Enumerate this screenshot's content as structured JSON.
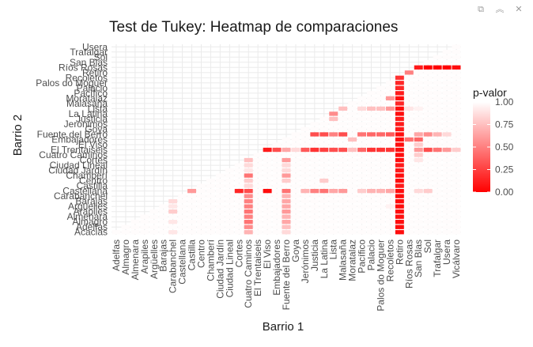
{
  "toolbar": {
    "icons": [
      "copy-icon",
      "collapse-icon",
      "close-icon"
    ],
    "copy_glyph": "⧉",
    "collapse_glyph": "︽",
    "close_glyph": "✕"
  },
  "chart_data": {
    "type": "heatmap",
    "title": "Test de Tukey: Heatmap de comparaciones",
    "xlabel": "Barrio 1",
    "ylabel": "Barrio 2",
    "x_categories": [
      "Adelfas",
      "Almagro",
      "Almenara",
      "Arapiles",
      "Argüelles",
      "Barajas",
      "Carabanchel",
      "Castellana",
      "Castilla",
      "Centro",
      "Chamberí",
      "Ciudad Jardín",
      "Ciudad Lineal",
      "Cortes",
      "Cuatro Caminos",
      "El Trentaiseis",
      "El Viso",
      "Embajadores",
      "Fuente del Berro",
      "Goya",
      "Jerónimos",
      "Justicia",
      "La Latina",
      "Lista",
      "Malasaña",
      "Moratalaz",
      "Pacífico",
      "Palacio",
      "Palos do Moguer",
      "Recoletos",
      "Retiro",
      "Ríos Rosas",
      "San Blas",
      "Sol",
      "Trafalgar",
      "Usera",
      "Vicálvaro"
    ],
    "y_categories": [
      "Acacias",
      "Adelfas",
      "Almagro",
      "Almenara",
      "Arapiles",
      "Argüelles",
      "Barajas",
      "Carabanchel",
      "Castellana",
      "Castilla",
      "Centro",
      "Chamberí",
      "Ciudad Jardín",
      "Ciudad Lineal",
      "Cortes",
      "Cuatro Caminos",
      "El Trentaiseis",
      "El Viso",
      "Embajadores",
      "Fuente del Berro",
      "Goya",
      "Jerónimos",
      "Justicia",
      "La Latina",
      "Lista",
      "Malasaña",
      "Moratalaz",
      "Pacífico",
      "Palacio",
      "Palos do Moguer",
      "Recoletos",
      "Retiro",
      "Ríos Rosas",
      "San Blas",
      "Sol",
      "Trafalgar",
      "Usera"
    ],
    "legend": {
      "title": "p-valor",
      "ticks": [
        "1.00",
        "0.75",
        "0.50",
        "0.25",
        "0.00"
      ],
      "tick_values": [
        1.0,
        0.75,
        0.5,
        0.25,
        0.0
      ],
      "range": [
        0,
        1
      ],
      "low_color": "#ff0000",
      "high_color": "#ffffff",
      "position": "right"
    },
    "default_value": 0.99,
    "cells": [
      [
        "Ríos Rosas",
        "Ríos Rosas",
        0.55
      ],
      [
        "San Blas",
        "Ríos Rosas",
        0.1
      ],
      [
        "Sol",
        "Ríos Rosas",
        0.0
      ],
      [
        "Trafalgar",
        "Ríos Rosas",
        0.0
      ],
      [
        "Usera",
        "Ríos Rosas",
        0.0
      ],
      [
        "Vicálvaro",
        "Ríos Rosas",
        0.05
      ],
      [
        "Retiro",
        "Retiro",
        0.1
      ],
      [
        "Ríos Rosas",
        "Retiro",
        0.5
      ],
      [
        "Retiro",
        "Recoletos",
        0.2
      ],
      [
        "Retiro",
        "Palos do Moguer",
        0.15
      ],
      [
        "Retiro",
        "Palacio",
        0.15
      ],
      [
        "Retiro",
        "Pacífico",
        0.1
      ],
      [
        "Recoletos",
        "Moratalaz",
        0.6
      ],
      [
        "Retiro",
        "Moratalaz",
        0.05
      ],
      [
        "Retiro",
        "Malasaña",
        0.15
      ],
      [
        "Malasaña",
        "Lista",
        0.75
      ],
      [
        "Pacífico",
        "Lista",
        0.85
      ],
      [
        "Palacio",
        "Lista",
        0.75
      ],
      [
        "Palos do Moguer",
        "Lista",
        0.75
      ],
      [
        "Recoletos",
        "Lista",
        0.6
      ],
      [
        "Retiro",
        "Lista",
        0.05
      ],
      [
        "Ríos Rosas",
        "Lista",
        0.9
      ],
      [
        "San Blas",
        "Lista",
        0.95
      ],
      [
        "Lista",
        "La Latina",
        0.55
      ],
      [
        "Retiro",
        "La Latina",
        0.05
      ],
      [
        "Lista",
        "Justicia",
        0.75
      ],
      [
        "Retiro",
        "Justicia",
        0.1
      ],
      [
        "Retiro",
        "Jerónimos",
        0.1
      ],
      [
        "Retiro",
        "Goya",
        0.1
      ],
      [
        "Justicia",
        "Fuente del Berro",
        0.3
      ],
      [
        "La Latina",
        "Fuente del Berro",
        0.3
      ],
      [
        "Lista",
        "Fuente del Berro",
        0.5
      ],
      [
        "Malasaña",
        "Fuente del Berro",
        0.3
      ],
      [
        "Pacífico",
        "Fuente del Berro",
        0.45
      ],
      [
        "Palacio",
        "Fuente del Berro",
        0.4
      ],
      [
        "Palos do Moguer",
        "Fuente del Berro",
        0.4
      ],
      [
        "Recoletos",
        "Fuente del Berro",
        0.35
      ],
      [
        "Retiro",
        "Fuente del Berro",
        0.05
      ],
      [
        "San Blas",
        "Fuente del Berro",
        0.65
      ],
      [
        "Sol",
        "Fuente del Berro",
        0.55
      ],
      [
        "Trafalgar",
        "Fuente del Berro",
        0.7
      ],
      [
        "Usera",
        "Fuente del Berro",
        0.85
      ],
      [
        "Moratalaz",
        "Embajadores",
        0.75
      ],
      [
        "Retiro",
        "Embajadores",
        0.05
      ],
      [
        "Ríos Rosas",
        "Embajadores",
        0.45
      ],
      [
        "San Blas",
        "Embajadores",
        0.4
      ],
      [
        "Retiro",
        "El Viso",
        0.05
      ],
      [
        "San Blas",
        "El Viso",
        0.8
      ],
      [
        "El Trentaiseis",
        "El Trentaiseis",
        0.45
      ],
      [
        "El Viso",
        "El Trentaiseis",
        0.1
      ],
      [
        "Embajadores",
        "El Trentaiseis",
        0.3
      ],
      [
        "Fuente del Berro",
        "El Trentaiseis",
        0.65
      ],
      [
        "Goya",
        "El Trentaiseis",
        0.85
      ],
      [
        "Jerónimos",
        "El Trentaiseis",
        0.35
      ],
      [
        "Justicia",
        "El Trentaiseis",
        0.2
      ],
      [
        "La Latina",
        "El Trentaiseis",
        0.25
      ],
      [
        "Lista",
        "El Trentaiseis",
        0.3
      ],
      [
        "Malasaña",
        "El Trentaiseis",
        0.3
      ],
      [
        "Moratalaz",
        "El Trentaiseis",
        0.75
      ],
      [
        "Pacífico",
        "El Trentaiseis",
        0.4
      ],
      [
        "Palacio",
        "El Trentaiseis",
        0.2
      ],
      [
        "Palos do Moguer",
        "El Trentaiseis",
        0.2
      ],
      [
        "Recoletos",
        "El Trentaiseis",
        0.2
      ],
      [
        "Retiro",
        "El Trentaiseis",
        0.05
      ],
      [
        "San Blas",
        "El Trentaiseis",
        0.6
      ],
      [
        "Sol",
        "El Trentaiseis",
        0.3
      ],
      [
        "Trafalgar",
        "El Trentaiseis",
        0.45
      ],
      [
        "Usera",
        "El Trentaiseis",
        0.6
      ],
      [
        "Vicálvaro",
        "El Trentaiseis",
        0.8
      ],
      [
        "Retiro",
        "Cuatro Caminos",
        0.05
      ],
      [
        "San Blas",
        "Cuatro Caminos",
        0.8
      ],
      [
        "Cuatro Caminos",
        "Cortes",
        0.75
      ],
      [
        "Fuente del Berro",
        "Cortes",
        0.6
      ],
      [
        "Retiro",
        "Cortes",
        0.05
      ],
      [
        "San Blas",
        "Cortes",
        0.9
      ],
      [
        "Cuatro Caminos",
        "Ciudad Lineal",
        0.85
      ],
      [
        "Fuente del Berro",
        "Ciudad Lineal",
        0.85
      ],
      [
        "Retiro",
        "Ciudad Lineal",
        0.1
      ],
      [
        "Cuatro Caminos",
        "Ciudad Jardín",
        0.9
      ],
      [
        "Fuente del Berro",
        "Ciudad Jardín",
        0.85
      ],
      [
        "Retiro",
        "Ciudad Jardín",
        0.1
      ],
      [
        "Cuatro Caminos",
        "Chamberí",
        0.45
      ],
      [
        "Fuente del Berro",
        "Chamberí",
        0.6
      ],
      [
        "Retiro",
        "Chamberí",
        0.05
      ],
      [
        "Cuatro Caminos",
        "Centro",
        0.8
      ],
      [
        "Fuente del Berro",
        "Centro",
        0.8
      ],
      [
        "La Latina",
        "Centro",
        0.8
      ],
      [
        "Retiro",
        "Centro",
        0.05
      ],
      [
        "Cuatro Caminos",
        "Castilla",
        0.85
      ],
      [
        "Retiro",
        "Castilla",
        0.1
      ],
      [
        "Castilla",
        "Castellana",
        0.6
      ],
      [
        "Cortes",
        "Castellana",
        0.15
      ],
      [
        "Cuatro Caminos",
        "Castellana",
        0.3
      ],
      [
        "El Viso",
        "Castellana",
        0.05
      ],
      [
        "Fuente del Berro",
        "Castellana",
        0.45
      ],
      [
        "Jerónimos",
        "Castellana",
        0.7
      ],
      [
        "Justicia",
        "Castellana",
        0.5
      ],
      [
        "La Latina",
        "Castellana",
        0.45
      ],
      [
        "Lista",
        "Castellana",
        0.65
      ],
      [
        "Malasaña",
        "Castellana",
        0.6
      ],
      [
        "Pacífico",
        "Castellana",
        0.8
      ],
      [
        "Palacio",
        "Castellana",
        0.7
      ],
      [
        "Palos do Moguer",
        "Castellana",
        0.7
      ],
      [
        "Recoletos",
        "Castellana",
        0.65
      ],
      [
        "Retiro",
        "Castellana",
        0.05
      ],
      [
        "San Blas",
        "Castellana",
        0.85
      ],
      [
        "Sol",
        "Castellana",
        0.8
      ],
      [
        "Carabanchel",
        "Carabanchel",
        0.9
      ],
      [
        "Cuatro Caminos",
        "Carabanchel",
        0.55
      ],
      [
        "Fuente del Berro",
        "Carabanchel",
        0.7
      ],
      [
        "Retiro",
        "Carabanchel",
        0.05
      ],
      [
        "Carabanchel",
        "Barajas",
        0.85
      ],
      [
        "Cuatro Caminos",
        "Barajas",
        0.5
      ],
      [
        "Fuente del Berro",
        "Barajas",
        0.65
      ],
      [
        "Retiro",
        "Barajas",
        0.05
      ],
      [
        "Carabanchel",
        "Argüelles",
        0.9
      ],
      [
        "Cuatro Caminos",
        "Argüelles",
        0.5
      ],
      [
        "Fuente del Berro",
        "Argüelles",
        0.65
      ],
      [
        "Retiro",
        "Argüelles",
        0.05
      ],
      [
        "Recoletos",
        "Argüelles",
        0.95
      ],
      [
        "Carabanchel",
        "Arapiles",
        0.8
      ],
      [
        "Cuatro Caminos",
        "Arapiles",
        0.45
      ],
      [
        "Fuente del Berro",
        "Arapiles",
        0.6
      ],
      [
        "Retiro",
        "Arapiles",
        0.05
      ],
      [
        "Cuatro Caminos",
        "Almenara",
        0.5
      ],
      [
        "Fuente del Berro",
        "Almenara",
        0.7
      ],
      [
        "Retiro",
        "Almenara",
        0.05
      ],
      [
        "Carabanchel",
        "Almagro",
        0.9
      ],
      [
        "Cuatro Caminos",
        "Almagro",
        0.45
      ],
      [
        "Fuente del Berro",
        "Almagro",
        0.65
      ],
      [
        "Retiro",
        "Almagro",
        0.05
      ],
      [
        "Cuatro Caminos",
        "Adelfas",
        0.55
      ],
      [
        "Fuente del Berro",
        "Adelfas",
        0.75
      ],
      [
        "Retiro",
        "Adelfas",
        0.05
      ],
      [
        "Carabanchel",
        "Acacias",
        0.9
      ],
      [
        "Cuatro Caminos",
        "Acacias",
        0.7
      ],
      [
        "Fuente del Berro",
        "Acacias",
        0.85
      ],
      [
        "Retiro",
        "Acacias",
        0.05
      ]
    ]
  }
}
